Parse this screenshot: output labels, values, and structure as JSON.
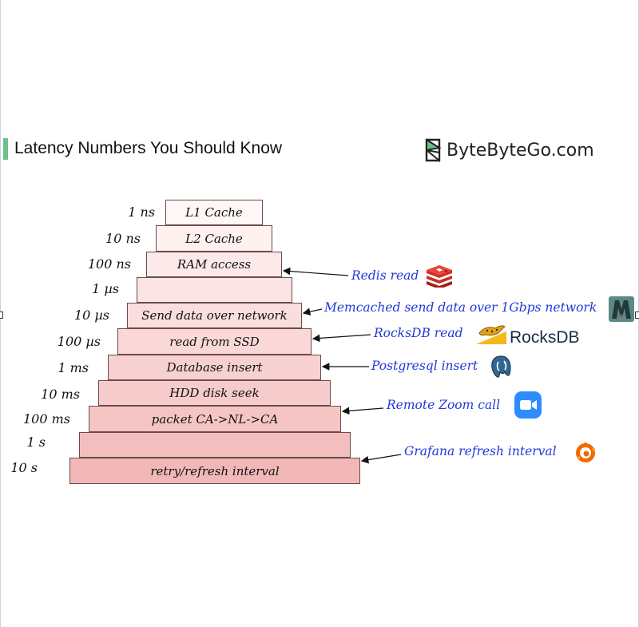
{
  "header": {
    "title": "Latency Numbers You Should Know",
    "brand": "ByteByteGo.com"
  },
  "levels": [
    {
      "latency": "1 ns",
      "label": "L1 Cache"
    },
    {
      "latency": "10 ns",
      "label": "L2 Cache"
    },
    {
      "latency": "100 ns",
      "label": "RAM access"
    },
    {
      "latency": "1 µs",
      "label": ""
    },
    {
      "latency": "10 µs",
      "label": "Send data over network"
    },
    {
      "latency": "100 µs",
      "label": "read from SSD"
    },
    {
      "latency": "1 ms",
      "label": "Database insert"
    },
    {
      "latency": "10 ms",
      "label": "HDD disk seek"
    },
    {
      "latency": "100 ms",
      "label": "packet CA->NL->CA"
    },
    {
      "latency": "1 s",
      "label": ""
    },
    {
      "latency": "10 s",
      "label": "retry/refresh interval"
    }
  ],
  "annotations": [
    {
      "text": "Redis read",
      "icon": "redis-icon"
    },
    {
      "text": "Memcached send data over 1Gbps network",
      "icon": "memcached-icon"
    },
    {
      "text": "RocksDB read",
      "icon": "rocksdb-icon",
      "icon_text": "RocksDB"
    },
    {
      "text": "Postgresql insert",
      "icon": "postgresql-icon"
    },
    {
      "text": "Remote Zoom call",
      "icon": "zoom-icon"
    },
    {
      "text": "Grafana refresh interval",
      "icon": "grafana-icon"
    }
  ],
  "colors": {
    "step_top": "#fff7f6",
    "step_bottom": "#f2b8b8",
    "step_border": "#6b4a4a",
    "annotation_text": "#2039d8",
    "title_accent": "#6cc08b"
  }
}
